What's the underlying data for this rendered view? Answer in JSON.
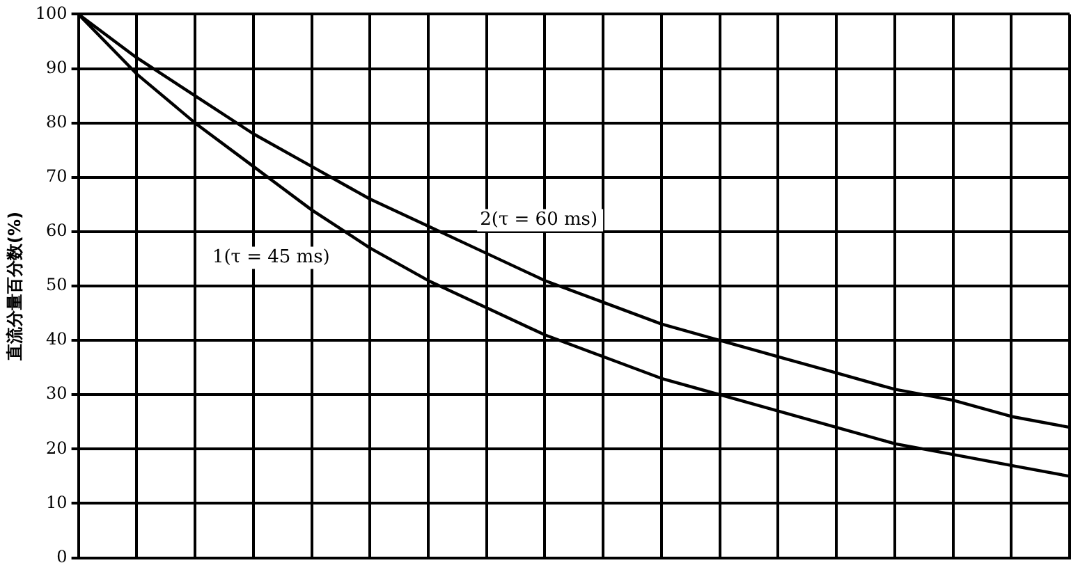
{
  "chart_data": {
    "type": "line",
    "ylabel": "直流分量百分数(%)",
    "categories": [
      null,
      null,
      null,
      null,
      null,
      null,
      null,
      null,
      null,
      null,
      null,
      null,
      null,
      null,
      null,
      null,
      null,
      null
    ],
    "series": [
      {
        "name": "1(τ = 45 ms)",
        "color": "#000000",
        "values": [
          100,
          89,
          80,
          72,
          64,
          57,
          51,
          46,
          41,
          37,
          33,
          30,
          27,
          24,
          21,
          19,
          17,
          15
        ]
      },
      {
        "name": "2(τ = 60 ms)",
        "color": "#000000",
        "values": [
          100,
          92,
          85,
          78,
          72,
          66,
          61,
          56,
          51,
          47,
          43,
          40,
          37,
          34,
          31,
          29,
          26,
          24
        ]
      }
    ],
    "ylim": [
      0,
      100
    ],
    "yticks": [
      0,
      10,
      20,
      30,
      40,
      50,
      60,
      70,
      80,
      90,
      100
    ],
    "grid": true,
    "tick_labels": "y",
    "marker": "none",
    "line_style": "solid",
    "legend": false
  }
}
